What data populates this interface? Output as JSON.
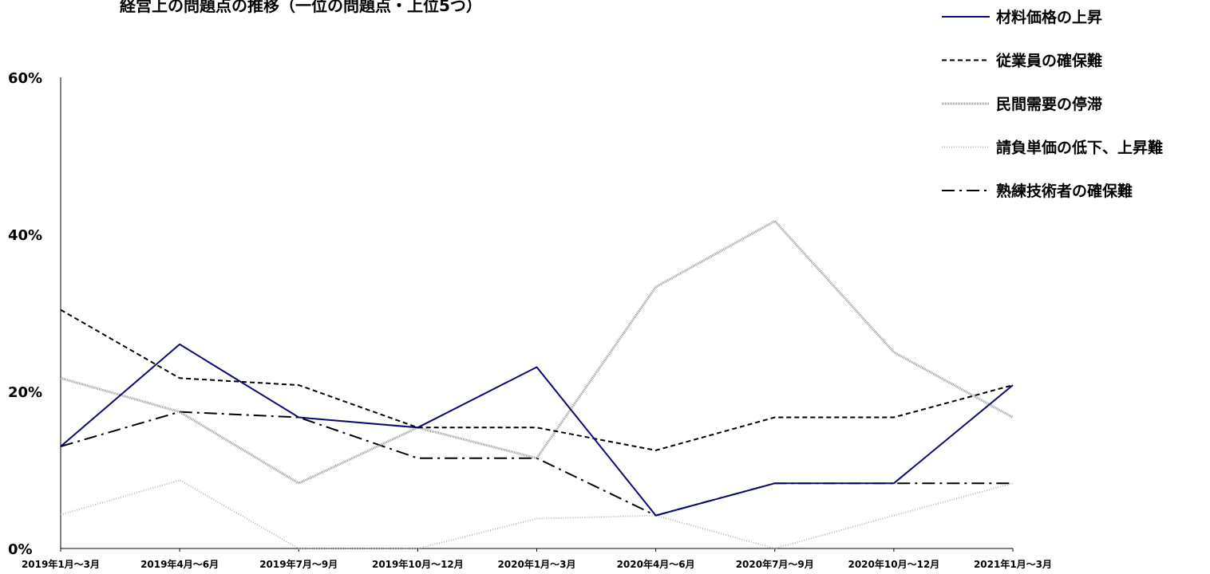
{
  "chart_data": {
    "type": "line",
    "title": "経営上の問題点の推移（一位の問題点・上位5つ）",
    "xlabel": "",
    "ylabel": "",
    "ylim": [
      0,
      60
    ],
    "y_ticks": [
      "0%",
      "20%",
      "40%",
      "60%"
    ],
    "y_tick_values": [
      0,
      20,
      40,
      60
    ],
    "grid": false,
    "legend_position": "top-right",
    "categories": [
      "2019年1月～3月",
      "2019年4月～6月",
      "2019年7月～9月",
      "2019年10月～12月",
      "2020年1月～3月",
      "2020年4月～6月",
      "2020年7月～9月",
      "2020年10月～12月",
      "2021年1月～3月"
    ],
    "series": [
      {
        "name": "材料価格の上昇",
        "values": [
          13,
          26,
          16.7,
          15.4,
          23.1,
          4.2,
          8.3,
          8.3,
          20.8
        ],
        "color": "#0a0a6e",
        "style": "solid"
      },
      {
        "name": "従業員の確保難",
        "values": [
          30.4,
          21.7,
          20.8,
          15.4,
          15.4,
          12.5,
          16.7,
          16.7,
          20.8
        ],
        "color": "#000000",
        "style": "dashed"
      },
      {
        "name": "民間需要の停滞",
        "values": [
          21.7,
          17.4,
          8.3,
          15.4,
          11.5,
          33.3,
          41.7,
          25,
          16.7
        ],
        "color": "#999999",
        "style": "textured"
      },
      {
        "name": "請負単価の低下、上昇難",
        "values": [
          4.3,
          8.7,
          0,
          0,
          3.8,
          4.2,
          0,
          4.2,
          8.3
        ],
        "color": "#bbbbbb",
        "style": "dotted"
      },
      {
        "name": "熟練技術者の確保難",
        "values": [
          13,
          17.4,
          16.7,
          11.5,
          11.5,
          4.2,
          8.3,
          8.3,
          8.3
        ],
        "color": "#000000",
        "style": "dashdot"
      }
    ]
  }
}
